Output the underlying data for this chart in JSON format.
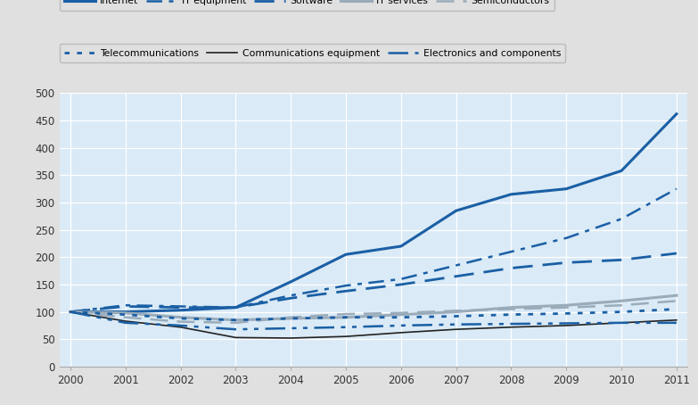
{
  "years": [
    2000,
    2001,
    2002,
    2003,
    2004,
    2005,
    2006,
    2007,
    2008,
    2009,
    2010,
    2011
  ],
  "series": {
    "Internet": [
      100,
      100,
      103,
      108,
      155,
      205,
      220,
      285,
      315,
      325,
      358,
      462
    ],
    "IT equipment": [
      100,
      112,
      110,
      108,
      130,
      148,
      160,
      185,
      210,
      235,
      270,
      325
    ],
    "Software": [
      100,
      110,
      108,
      108,
      125,
      138,
      150,
      165,
      180,
      190,
      195,
      207
    ],
    "IT services": [
      100,
      98,
      90,
      85,
      88,
      90,
      95,
      100,
      108,
      112,
      120,
      130
    ],
    "Semiconductors": [
      100,
      90,
      82,
      80,
      90,
      96,
      98,
      102,
      105,
      108,
      112,
      120
    ],
    "Telecommunications": [
      100,
      95,
      88,
      85,
      88,
      90,
      90,
      92,
      95,
      97,
      100,
      105
    ],
    "Communications equipment": [
      100,
      83,
      72,
      53,
      52,
      55,
      62,
      68,
      72,
      75,
      80,
      85
    ],
    "Electronics and components": [
      100,
      80,
      75,
      68,
      70,
      72,
      75,
      77,
      78,
      79,
      80,
      80
    ]
  },
  "line_configs": {
    "Internet": {
      "color": "#1a5fa5",
      "lw": 2.2,
      "ls": "-",
      "dashes": []
    },
    "IT equipment": {
      "color": "#1a5fa5",
      "lw": 1.8,
      "ls": "-.",
      "dashes": [
        7,
        3,
        2,
        3
      ]
    },
    "Software": {
      "color": "#1a5fa5",
      "lw": 2.0,
      "ls": "--",
      "dashes": [
        8,
        4
      ]
    },
    "IT services": {
      "color": "#9aabba",
      "lw": 2.2,
      "ls": "-",
      "dashes": []
    },
    "Semiconductors": {
      "color": "#9aabba",
      "lw": 1.8,
      "ls": "--",
      "dashes": [
        8,
        4
      ]
    },
    "Telecommunications": {
      "color": "#1a5fa5",
      "lw": 2.0,
      "ls": ":",
      "dashes": [
        2,
        3
      ]
    },
    "Communications equipment": {
      "color": "#222222",
      "lw": 1.2,
      "ls": "-",
      "dashes": []
    },
    "Electronics and components": {
      "color": "#1a5fa5",
      "lw": 1.8,
      "ls": "-.",
      "dashes": [
        9,
        3,
        2,
        3,
        2,
        3
      ]
    }
  },
  "ylim": [
    0,
    500
  ],
  "yticks": [
    0,
    50,
    100,
    150,
    200,
    250,
    300,
    350,
    400,
    450,
    500
  ],
  "plot_bg_color": "#daeaf6",
  "fig_bg_color": "#e0e0e0",
  "legend_row1": [
    "Internet",
    "IT equipment",
    "Software",
    "IT services",
    "Semiconductors"
  ],
  "legend_row2": [
    "Telecommunications",
    "Communications equipment",
    "Electronics and components"
  ]
}
